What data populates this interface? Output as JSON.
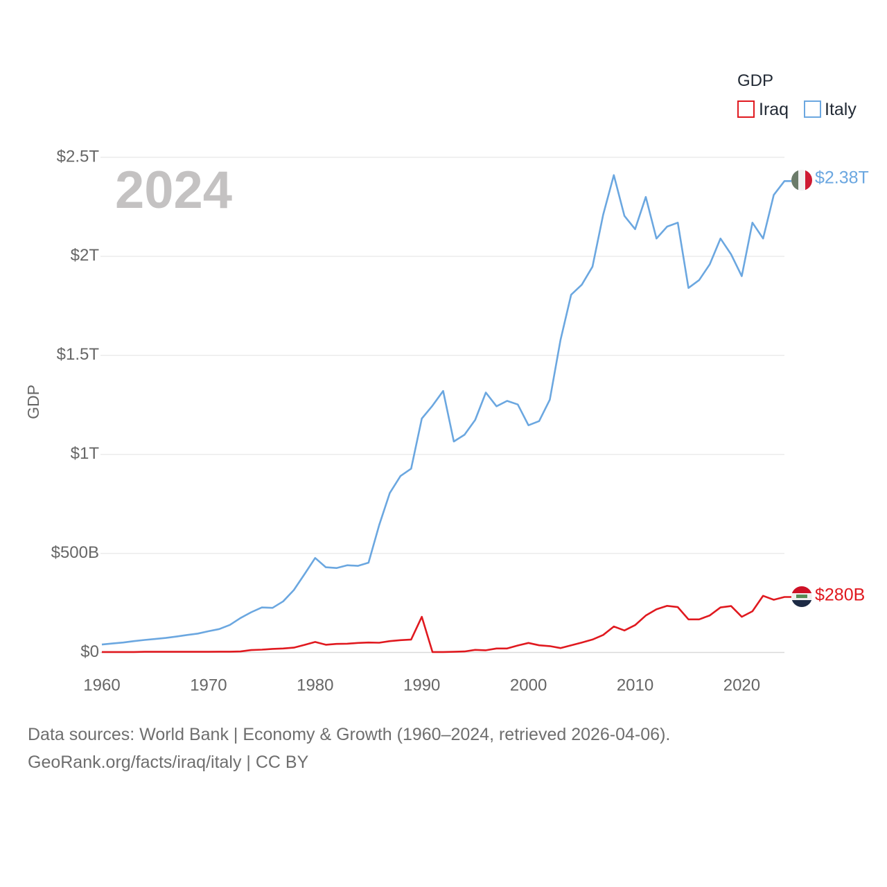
{
  "chart_data": {
    "type": "line",
    "title": "GDP",
    "ylabel": "GDP",
    "xlabel": "",
    "year_label": "2024",
    "xlim": [
      1960,
      2024
    ],
    "ylim": [
      0,
      2500000000000
    ],
    "x_ticks": [
      1960,
      1970,
      1980,
      1990,
      2000,
      2010,
      2020
    ],
    "x_tick_labels": [
      "1960",
      "1970",
      "1980",
      "1990",
      "2000",
      "2010",
      "2020"
    ],
    "y_ticks": [
      0,
      500000000000,
      1000000000000,
      1500000000000,
      2000000000000,
      2500000000000
    ],
    "y_tick_labels": [
      "$0",
      "$500B",
      "$1T",
      "$1.5T",
      "$2T",
      "$2.5T"
    ],
    "legend": {
      "title": "GDP",
      "position": "top-right",
      "entries": [
        "Iraq",
        "Italy"
      ]
    },
    "x": [
      1960,
      1961,
      1962,
      1963,
      1964,
      1965,
      1966,
      1967,
      1968,
      1969,
      1970,
      1971,
      1972,
      1973,
      1974,
      1975,
      1976,
      1977,
      1978,
      1979,
      1980,
      1981,
      1982,
      1983,
      1984,
      1985,
      1986,
      1987,
      1988,
      1989,
      1990,
      1991,
      1992,
      1993,
      1994,
      1995,
      1996,
      1997,
      1998,
      1999,
      2000,
      2001,
      2002,
      2003,
      2004,
      2005,
      2006,
      2007,
      2008,
      2009,
      2010,
      2011,
      2012,
      2013,
      2014,
      2015,
      2016,
      2017,
      2018,
      2019,
      2020,
      2021,
      2022,
      2023,
      2024
    ],
    "series": [
      {
        "name": "Iraq",
        "color": "#e0191f",
        "end_label": "$280B",
        "flag": "iraq-flag",
        "values_billions": [
          2,
          2,
          2,
          2,
          3,
          3,
          3,
          3,
          3,
          3,
          3,
          4,
          4,
          5,
          12,
          14,
          18,
          20,
          24,
          38,
          53,
          39,
          43,
          44,
          48,
          50,
          49,
          57,
          62,
          65,
          180,
          2,
          2,
          3,
          5,
          13,
          11,
          20,
          20,
          35,
          48,
          36,
          32,
          22,
          36,
          50,
          65,
          88,
          131,
          111,
          138,
          186,
          218,
          235,
          229,
          167,
          167,
          187,
          227,
          234,
          180,
          208,
          286,
          266,
          280
        ]
      },
      {
        "name": "Italy",
        "color": "#6ba7e0",
        "end_label": "$2.38T",
        "flag": "italy-flag",
        "values_billions": [
          40,
          45,
          50,
          57,
          63,
          68,
          73,
          80,
          88,
          95,
          107,
          118,
          139,
          174,
          203,
          227,
          225,
          258,
          315,
          395,
          477,
          430,
          426,
          440,
          437,
          453,
          643,
          805,
          891,
          928,
          1181,
          1246,
          1320,
          1065,
          1099,
          1174,
          1312,
          1243,
          1270,
          1252,
          1147,
          1168,
          1276,
          1577,
          1806,
          1857,
          1948,
          2210,
          2410,
          2204,
          2137,
          2300,
          2090,
          2150,
          2170,
          1840,
          1880,
          1960,
          2090,
          2010,
          1900,
          2170,
          2090,
          2310,
          2380
        ]
      }
    ]
  },
  "footer": {
    "line1": "Data sources: World Bank | Economy & Growth (1960–2024, retrieved 2026-04-06).",
    "line2": "GeoRank.org/facts/iraq/italy | CC BY"
  }
}
